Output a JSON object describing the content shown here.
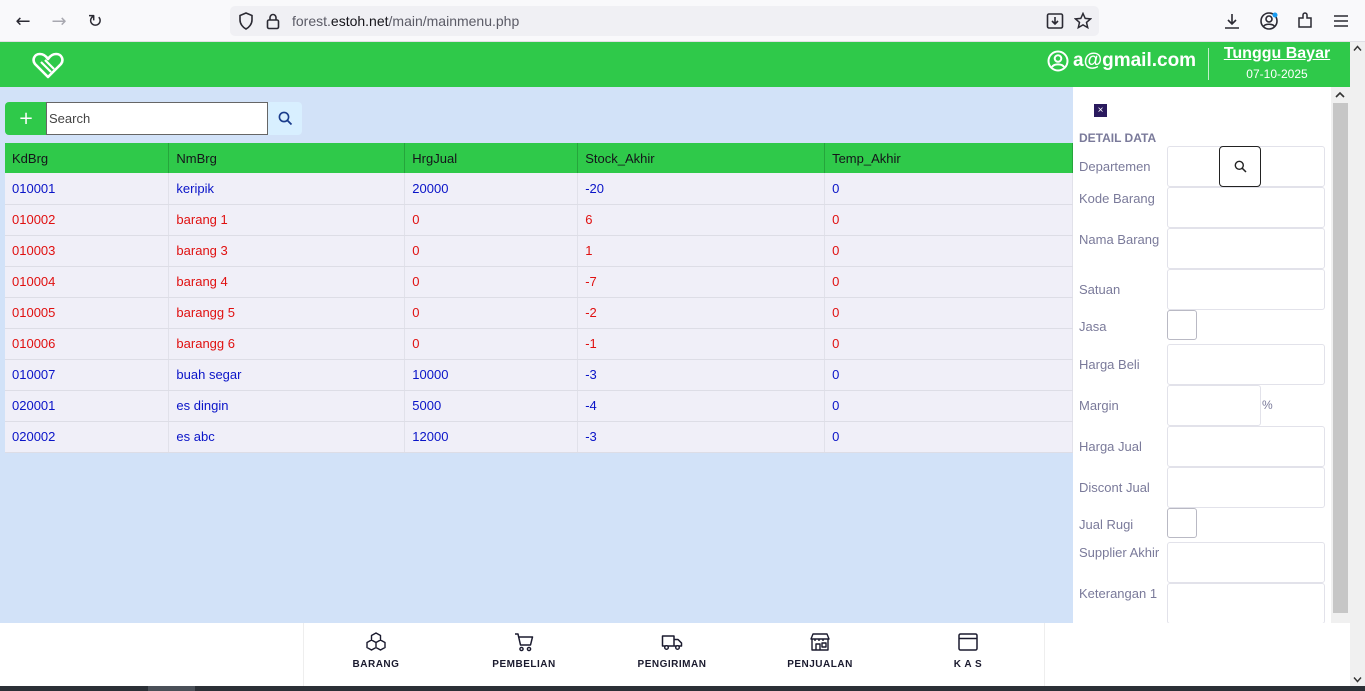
{
  "browser": {
    "url_prefix": "forest.",
    "url_domain": "estoh.net",
    "url_path": "/main/mainmenu.php"
  },
  "header": {
    "user_email": "a@gmail.com",
    "status_title": "Tunggu Bayar",
    "status_date": "07-10-2025"
  },
  "toolbar": {
    "add_label": "+",
    "search_placeholder": "Search"
  },
  "table": {
    "columns": [
      "KdBrg",
      "NmBrg",
      "HrgJual",
      "Stock_Akhir",
      "Temp_Akhir"
    ],
    "rows": [
      {
        "color": "blue",
        "cells": [
          "010001",
          "keripik",
          "20000",
          "-20",
          "0"
        ]
      },
      {
        "color": "red",
        "cells": [
          "010002",
          "barang 1",
          "0",
          "6",
          "0"
        ]
      },
      {
        "color": "red",
        "cells": [
          "010003",
          "barang 3",
          "0",
          "1",
          "0"
        ]
      },
      {
        "color": "red",
        "cells": [
          "010004",
          "barang 4",
          "0",
          "-7",
          "0"
        ]
      },
      {
        "color": "red",
        "cells": [
          "010005",
          "barangg 5",
          "0",
          "-2",
          "0"
        ]
      },
      {
        "color": "red",
        "cells": [
          "010006",
          "barangg 6",
          "0",
          "-1",
          "0"
        ]
      },
      {
        "color": "blue",
        "cells": [
          "010007",
          "buah segar",
          "10000",
          "-3",
          "0"
        ]
      },
      {
        "color": "blue",
        "cells": [
          "020001",
          "es dingin",
          "5000",
          "-4",
          "0"
        ]
      },
      {
        "color": "blue",
        "cells": [
          "020002",
          "es abc",
          "12000",
          "-3",
          "0"
        ]
      }
    ]
  },
  "detail": {
    "close_label": "×",
    "title": "DETAIL DATA",
    "departemen": "Departemen",
    "kode_barang": "Kode Barang",
    "nama_barang": "Nama Barang",
    "satuan": "Satuan",
    "jasa": "Jasa",
    "harga_beli": "Harga Beli",
    "margin": "Margin",
    "margin_unit": "%",
    "harga_jual": "Harga Jual",
    "discont_jual": "Discont Jual",
    "jual_rugi": "Jual Rugi",
    "supplier_akhir": "Supplier Akhir",
    "keterangan_1": "Keterangan 1"
  },
  "bottom_nav": {
    "barang": "BARANG",
    "pembelian": "PEMBELIAN",
    "pengiriman": "PENGIRIMAN",
    "penjualan": "PENJUALAN",
    "kas": "K A S"
  },
  "colors": {
    "brand_green": "#2fc94a",
    "main_bg": "#d2e2f8",
    "row_blue": "#0a14c8",
    "row_red": "#e01010"
  }
}
